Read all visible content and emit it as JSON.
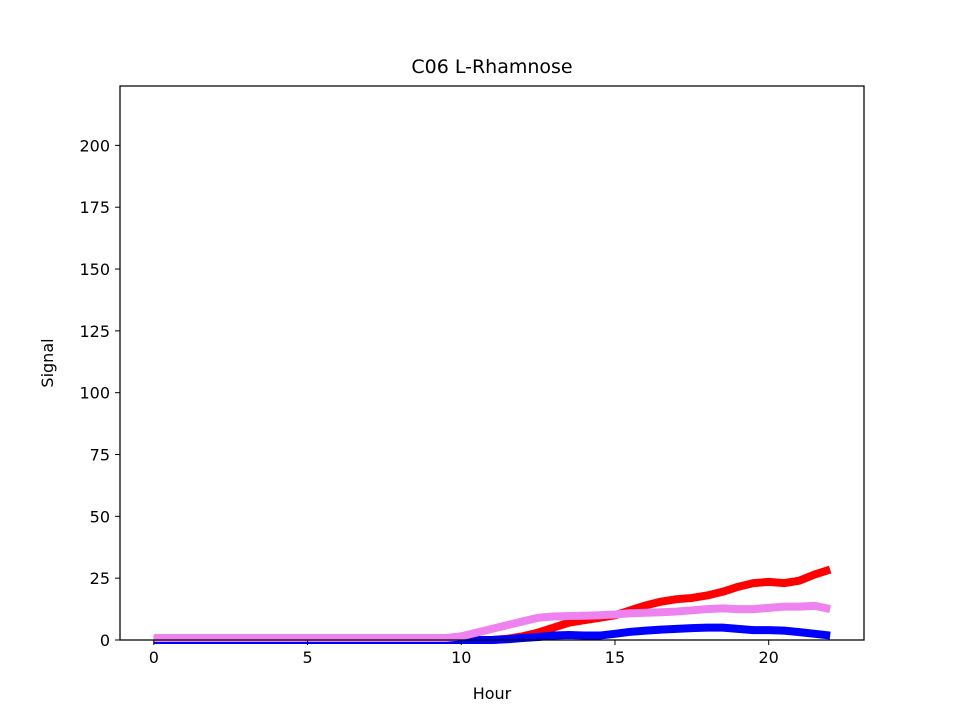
{
  "chart_data": {
    "type": "line",
    "title": "C06 L-Rhamnose",
    "xlabel": "Hour",
    "ylabel": "Signal",
    "xlim": [
      -1.1,
      23.1
    ],
    "ylim": [
      0,
      224
    ],
    "xticks": [
      0,
      5,
      10,
      15,
      20
    ],
    "yticks": [
      0,
      25,
      50,
      75,
      100,
      125,
      150,
      175,
      200
    ],
    "grid": false,
    "legend": "none",
    "series": [
      {
        "color": "#ff0000",
        "x": [
          0,
          1,
          2,
          3,
          4,
          5,
          6,
          7,
          8,
          9,
          10,
          10.5,
          11,
          11.5,
          12,
          12.5,
          13,
          13.5,
          14,
          14.5,
          15,
          15.5,
          16,
          16.5,
          17,
          17.5,
          18,
          18.5,
          19,
          19.5,
          20,
          20.5,
          21,
          21.5,
          22
        ],
        "y": [
          0,
          0,
          0,
          0,
          0,
          0,
          0,
          0,
          0,
          0,
          0,
          0,
          0,
          0.5,
          1.5,
          3,
          5,
          7,
          8,
          9,
          10,
          12,
          14,
          15.5,
          16.5,
          17,
          18,
          19.5,
          21.5,
          23,
          23.5,
          23,
          24,
          26.5,
          28.5
        ]
      },
      {
        "color": "#0000ff",
        "x": [
          0,
          1,
          2,
          3,
          4,
          5,
          6,
          7,
          8,
          9,
          10,
          10.5,
          11,
          11.5,
          12,
          12.5,
          13,
          13.5,
          14,
          14.5,
          15,
          15.5,
          16,
          16.5,
          17,
          17.5,
          18,
          18.5,
          19,
          19.5,
          20,
          20.5,
          21,
          21.5,
          22
        ],
        "y": [
          0,
          0,
          0,
          0,
          0,
          0,
          0,
          0,
          0,
          0,
          0,
          0,
          0,
          0.3,
          0.8,
          1.2,
          1.8,
          2,
          1.8,
          1.8,
          2.5,
          3.3,
          3.8,
          4.2,
          4.5,
          4.8,
          5,
          5,
          4.5,
          4,
          4,
          3.8,
          3.2,
          2.5,
          1.8
        ]
      },
      {
        "color": "#ee82ee",
        "x": [
          0,
          1,
          2,
          3,
          4,
          5,
          6,
          7,
          8,
          9,
          9.5,
          10,
          10.5,
          11,
          11.5,
          12,
          12.5,
          13,
          13.5,
          14,
          14.5,
          15,
          15.5,
          16,
          16.5,
          17,
          17.5,
          18,
          18.5,
          19,
          19.5,
          20,
          20.5,
          21,
          21.5,
          22
        ],
        "y": [
          0.8,
          0.8,
          0.8,
          0.8,
          0.8,
          0.8,
          0.8,
          0.8,
          0.8,
          0.8,
          0.8,
          1.5,
          3,
          4.5,
          6,
          7.5,
          9,
          9.5,
          9.7,
          9.8,
          10,
          10.3,
          10.8,
          11,
          11.2,
          11.5,
          12,
          12.5,
          12.8,
          12.5,
          12.5,
          13,
          13.5,
          13.5,
          13.8,
          12.5
        ]
      }
    ]
  }
}
